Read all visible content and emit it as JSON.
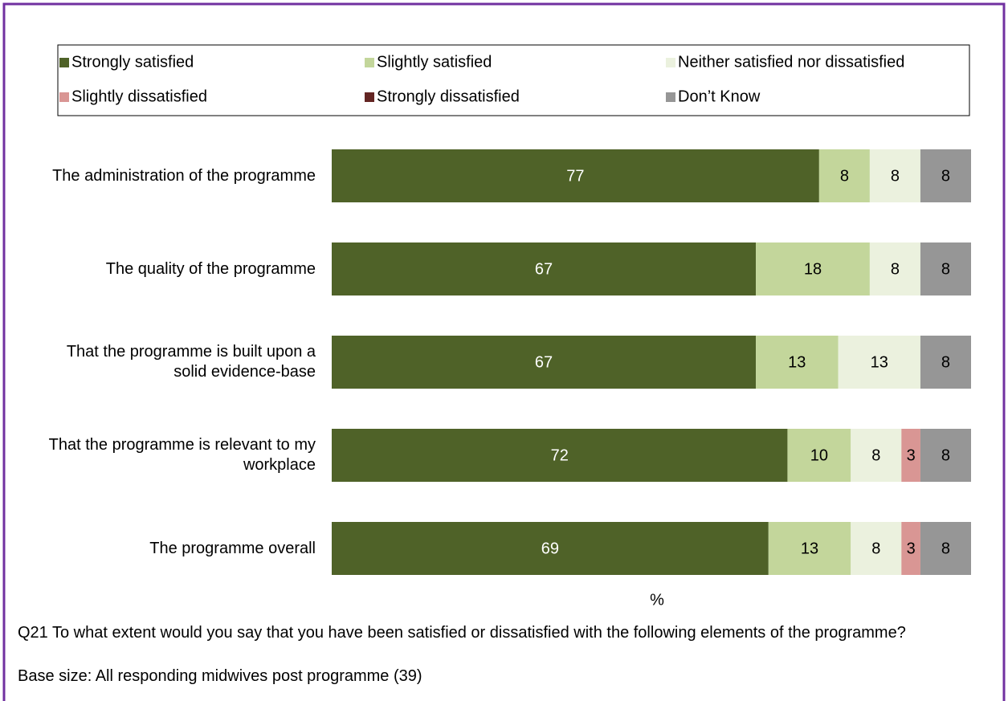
{
  "chart_data": {
    "type": "stacked-bar-horizontal",
    "categories": [
      "The administration of the programme",
      "The quality of the programme",
      "That the programme is built upon a solid evidence-base",
      "That the programme is relevant to my workplace",
      "The programme overall"
    ],
    "series": [
      {
        "name": "Strongly satisfied",
        "color": "#4f6228",
        "values": [
          77,
          67,
          67,
          72,
          69
        ]
      },
      {
        "name": "Slightly satisfied",
        "color": "#c3d69b",
        "values": [
          8,
          18,
          13,
          10,
          13
        ]
      },
      {
        "name": "Neither satisfied nor dissatisfied",
        "color": "#ebf1de",
        "values": [
          8,
          8,
          13,
          8,
          8
        ]
      },
      {
        "name": "Slightly dissatisfied",
        "color": "#d99694",
        "values": [
          null,
          null,
          null,
          3,
          3
        ]
      },
      {
        "name": "Strongly dissatisfied",
        "color": "#632523",
        "values": [
          null,
          null,
          null,
          null,
          null
        ]
      },
      {
        "name": "Don’t Know",
        "color": "#969696",
        "values": [
          8,
          8,
          8,
          8,
          8
        ]
      }
    ],
    "xlim": [
      0,
      101
    ],
    "x_label": "%",
    "notes": [
      "Q21  To what extent would you say that you have been satisfied or dissatisfied with the following elements of the programme?",
      "Base size: All responding midwives post programme (39)"
    ]
  }
}
